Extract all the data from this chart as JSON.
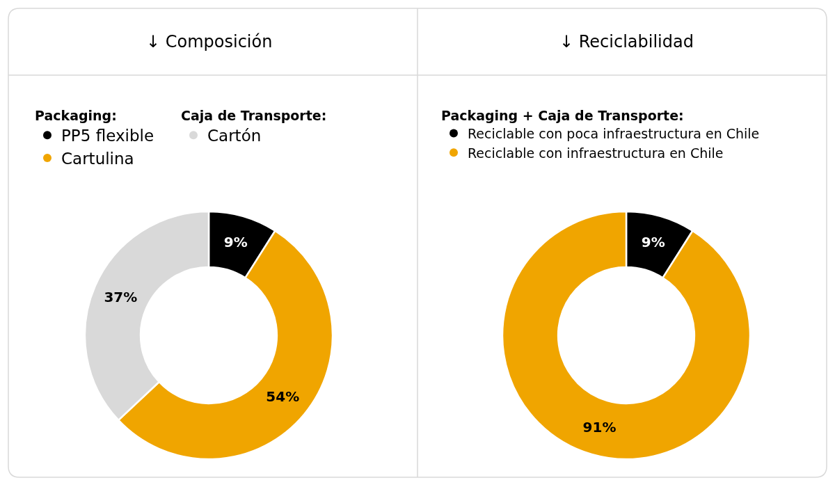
{
  "chart_data": [
    {
      "type": "donut",
      "title": "↓ Composición",
      "legend": "top left",
      "legend_title": "Packaging:",
      "annotations": [
        "Caja de Transporte:"
      ],
      "categories": [
        "PP5 flexible",
        "Cartulina",
        "Cartón"
      ],
      "values": [
        9,
        54,
        37
      ],
      "colors": [
        "#000000",
        "#f0a500",
        "#d9d9d9"
      ],
      "value_labels": [
        "9%",
        "54%",
        "37%"
      ]
    },
    {
      "type": "donut",
      "title": "↓ Reciclabilidad",
      "legend": "top left",
      "legend_title": "Packaging + Caja de Transporte:",
      "categories": [
        "Reciclable con poca infraestructura en Chile",
        "Reciclable con infraestructura en Chile"
      ],
      "values": [
        9,
        91
      ],
      "colors": [
        "#000000",
        "#f0a500"
      ],
      "value_labels": [
        "9%",
        "91%"
      ]
    }
  ]
}
